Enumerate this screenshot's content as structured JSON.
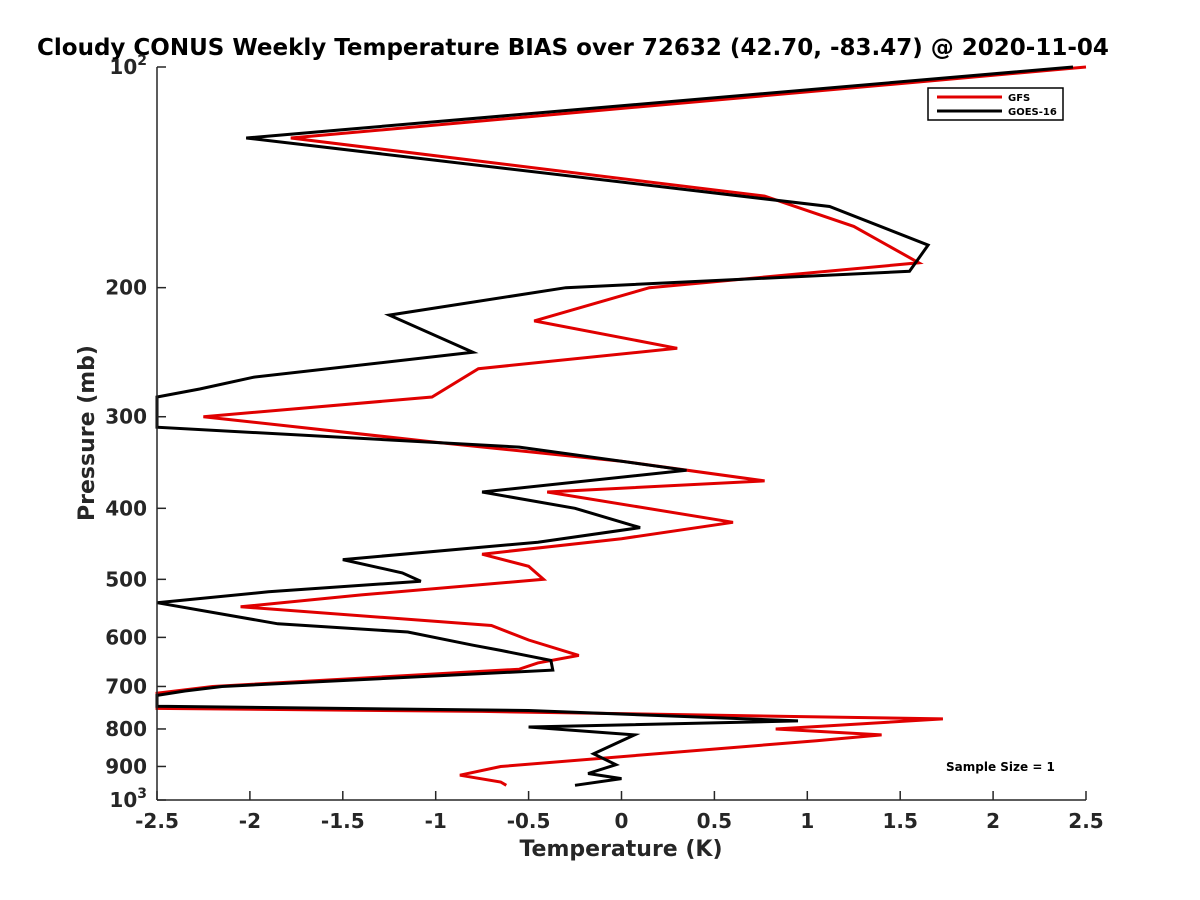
{
  "chart_data": {
    "type": "line",
    "title": "Cloudy CONUS Weekly Temperature BIAS over 72632 (42.70, -83.47) @ 2020-11-04",
    "xlabel": "Temperature (K)",
    "ylabel": "Pressure (mb)",
    "xlim": [
      -2.5,
      2.5
    ],
    "ylim": [
      100,
      1000
    ],
    "y_scale": "log",
    "y_reversed": true,
    "grid": false,
    "legend_position": "top-right",
    "x_ticks": [
      "-2.5",
      "-2",
      "-1.5",
      "-1",
      "-0.5",
      "0",
      "0.5",
      "1",
      "1.5",
      "2",
      "2.5"
    ],
    "y_ticks": [
      {
        "value": 100,
        "base": "10",
        "exp": "2"
      },
      {
        "value": 200,
        "label": "200"
      },
      {
        "value": 300,
        "label": "300"
      },
      {
        "value": 400,
        "label": "400"
      },
      {
        "value": 500,
        "label": "500"
      },
      {
        "value": 600,
        "label": "600"
      },
      {
        "value": 700,
        "label": "700"
      },
      {
        "value": 800,
        "label": "800"
      },
      {
        "value": 900,
        "label": "900"
      },
      {
        "value": 1000,
        "base": "10",
        "exp": "3"
      }
    ],
    "annotation": "Sample Size = 1",
    "series": [
      {
        "name": "GFS",
        "color": "#e00000",
        "points": [
          [
            2.5,
            100
          ],
          [
            -1.78,
            125
          ],
          [
            0.77,
            150
          ],
          [
            1.25,
            165
          ],
          [
            1.6,
            185
          ],
          [
            0.15,
            200
          ],
          [
            -0.47,
            222
          ],
          [
            0.3,
            242
          ],
          [
            -0.77,
            258
          ],
          [
            -1.02,
            282
          ],
          [
            -2.25,
            300
          ],
          [
            -1.0,
            325
          ],
          [
            0.0,
            345
          ],
          [
            0.77,
            367
          ],
          [
            -0.4,
            380
          ],
          [
            0.6,
            418
          ],
          [
            0.0,
            440
          ],
          [
            -0.75,
            462
          ],
          [
            -0.5,
            480
          ],
          [
            -0.42,
            500
          ],
          [
            -1.4,
            525
          ],
          [
            -2.05,
            545
          ],
          [
            -0.7,
            578
          ],
          [
            -0.5,
            605
          ],
          [
            -0.23,
            635
          ],
          [
            -0.45,
            650
          ],
          [
            -0.55,
            663
          ],
          [
            -2.2,
            700
          ],
          [
            -2.5,
            715
          ],
          [
            -2.5,
            750
          ],
          [
            -0.75,
            757
          ],
          [
            1.73,
            775
          ],
          [
            0.83,
            800
          ],
          [
            1.4,
            815
          ],
          [
            1.05,
            830
          ],
          [
            -0.65,
            900
          ],
          [
            -0.87,
            925
          ],
          [
            -0.65,
            945
          ],
          [
            -0.62,
            955
          ]
        ]
      },
      {
        "name": "GOES-16",
        "color": "#000000",
        "points": [
          [
            2.43,
            100
          ],
          [
            -2.02,
            125
          ],
          [
            1.12,
            155
          ],
          [
            1.65,
            175
          ],
          [
            1.55,
            190
          ],
          [
            -0.3,
            200
          ],
          [
            -1.25,
            218
          ],
          [
            -0.8,
            245
          ],
          [
            -1.98,
            265
          ],
          [
            -2.27,
            275
          ],
          [
            -2.5,
            282
          ],
          [
            -2.5,
            310
          ],
          [
            -0.55,
            330
          ],
          [
            0.35,
            355
          ],
          [
            -0.75,
            380
          ],
          [
            -0.25,
            400
          ],
          [
            0.1,
            425
          ],
          [
            -0.45,
            445
          ],
          [
            -1.5,
            470
          ],
          [
            -1.18,
            490
          ],
          [
            -1.08,
            503
          ],
          [
            -1.9,
            520
          ],
          [
            -2.5,
            538
          ],
          [
            -1.85,
            575
          ],
          [
            -1.15,
            590
          ],
          [
            -0.8,
            615
          ],
          [
            -0.65,
            625
          ],
          [
            -0.38,
            645
          ],
          [
            -0.37,
            665
          ],
          [
            -2.15,
            700
          ],
          [
            -2.35,
            710
          ],
          [
            -2.5,
            720
          ],
          [
            -2.5,
            745
          ],
          [
            -0.5,
            755
          ],
          [
            0.95,
            780
          ],
          [
            -0.5,
            795
          ],
          [
            0.07,
            815
          ],
          [
            -0.15,
            865
          ],
          [
            -0.03,
            895
          ],
          [
            -0.18,
            920
          ],
          [
            0.0,
            935
          ],
          [
            -0.25,
            955
          ]
        ]
      }
    ]
  }
}
